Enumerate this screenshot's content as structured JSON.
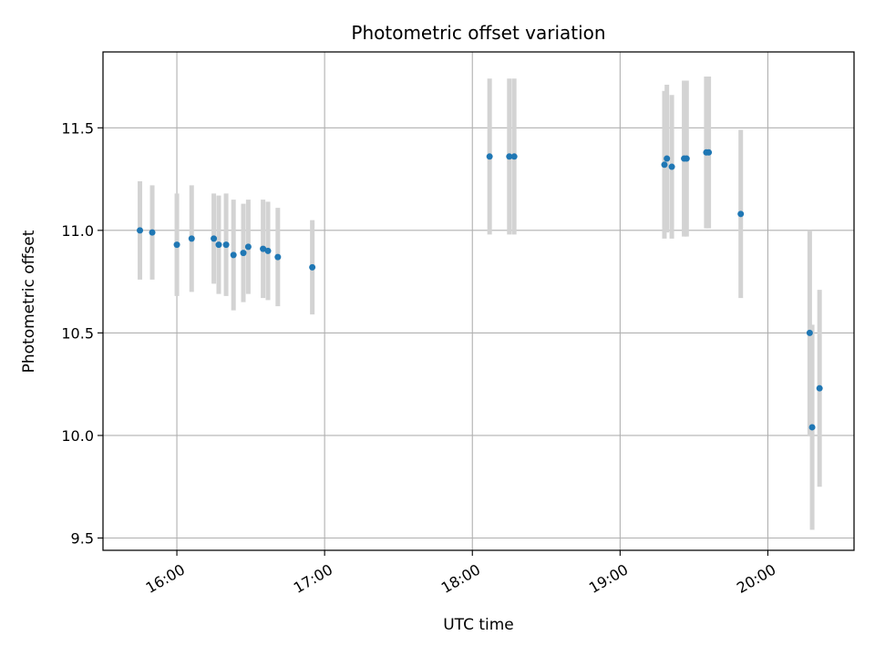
{
  "chart_data": {
    "type": "scatter",
    "title": "Photometric offset variation",
    "xlabel": "UTC time",
    "ylabel": "Photometric offset",
    "x_axis_type": "time",
    "xlim": [
      "15:30",
      "20:35"
    ],
    "ylim": [
      9.44,
      11.87
    ],
    "x_ticks": [
      "16:00",
      "17:00",
      "18:00",
      "19:00",
      "20:00"
    ],
    "y_ticks": [
      "9.5",
      "10.0",
      "10.5",
      "11.0",
      "11.5"
    ],
    "y_tick_values": [
      9.5,
      10.0,
      10.5,
      11.0,
      11.5
    ],
    "grid": true,
    "colors": {
      "point": "#1f77b4",
      "errorbar": "#d3d3d3",
      "grid": "#b0b0b0"
    },
    "points": [
      {
        "t": "15:45",
        "y": 11.0,
        "err": 0.24
      },
      {
        "t": "15:50",
        "y": 10.99,
        "err": 0.23
      },
      {
        "t": "16:00",
        "y": 10.93,
        "err": 0.25
      },
      {
        "t": "16:06",
        "y": 10.96,
        "err": 0.26
      },
      {
        "t": "16:15",
        "y": 10.96,
        "err": 0.22
      },
      {
        "t": "16:17",
        "y": 10.93,
        "err": 0.24
      },
      {
        "t": "16:20",
        "y": 10.93,
        "err": 0.25
      },
      {
        "t": "16:23",
        "y": 10.88,
        "err": 0.27
      },
      {
        "t": "16:27",
        "y": 10.89,
        "err": 0.24
      },
      {
        "t": "16:29",
        "y": 10.92,
        "err": 0.23
      },
      {
        "t": "16:35",
        "y": 10.91,
        "err": 0.24
      },
      {
        "t": "16:37",
        "y": 10.9,
        "err": 0.24
      },
      {
        "t": "16:41",
        "y": 10.87,
        "err": 0.24
      },
      {
        "t": "16:55",
        "y": 10.82,
        "err": 0.23
      },
      {
        "t": "18:07",
        "y": 11.36,
        "err": 0.38
      },
      {
        "t": "18:15",
        "y": 11.36,
        "err": 0.38
      },
      {
        "t": "18:17",
        "y": 11.36,
        "err": 0.38
      },
      {
        "t": "19:18",
        "y": 11.32,
        "err": 0.36
      },
      {
        "t": "19:19",
        "y": 11.35,
        "err": 0.36
      },
      {
        "t": "19:21",
        "y": 11.31,
        "err": 0.35
      },
      {
        "t": "19:26",
        "y": 11.35,
        "err": 0.38
      },
      {
        "t": "19:27",
        "y": 11.35,
        "err": 0.38
      },
      {
        "t": "19:35",
        "y": 11.38,
        "err": 0.37
      },
      {
        "t": "19:36",
        "y": 11.38,
        "err": 0.37
      },
      {
        "t": "19:49",
        "y": 11.08,
        "err": 0.41
      },
      {
        "t": "20:17",
        "y": 10.5,
        "err": 0.5
      },
      {
        "t": "20:18",
        "y": 10.04,
        "err": 0.5
      },
      {
        "t": "20:21",
        "y": 10.23,
        "err": 0.48
      }
    ]
  }
}
